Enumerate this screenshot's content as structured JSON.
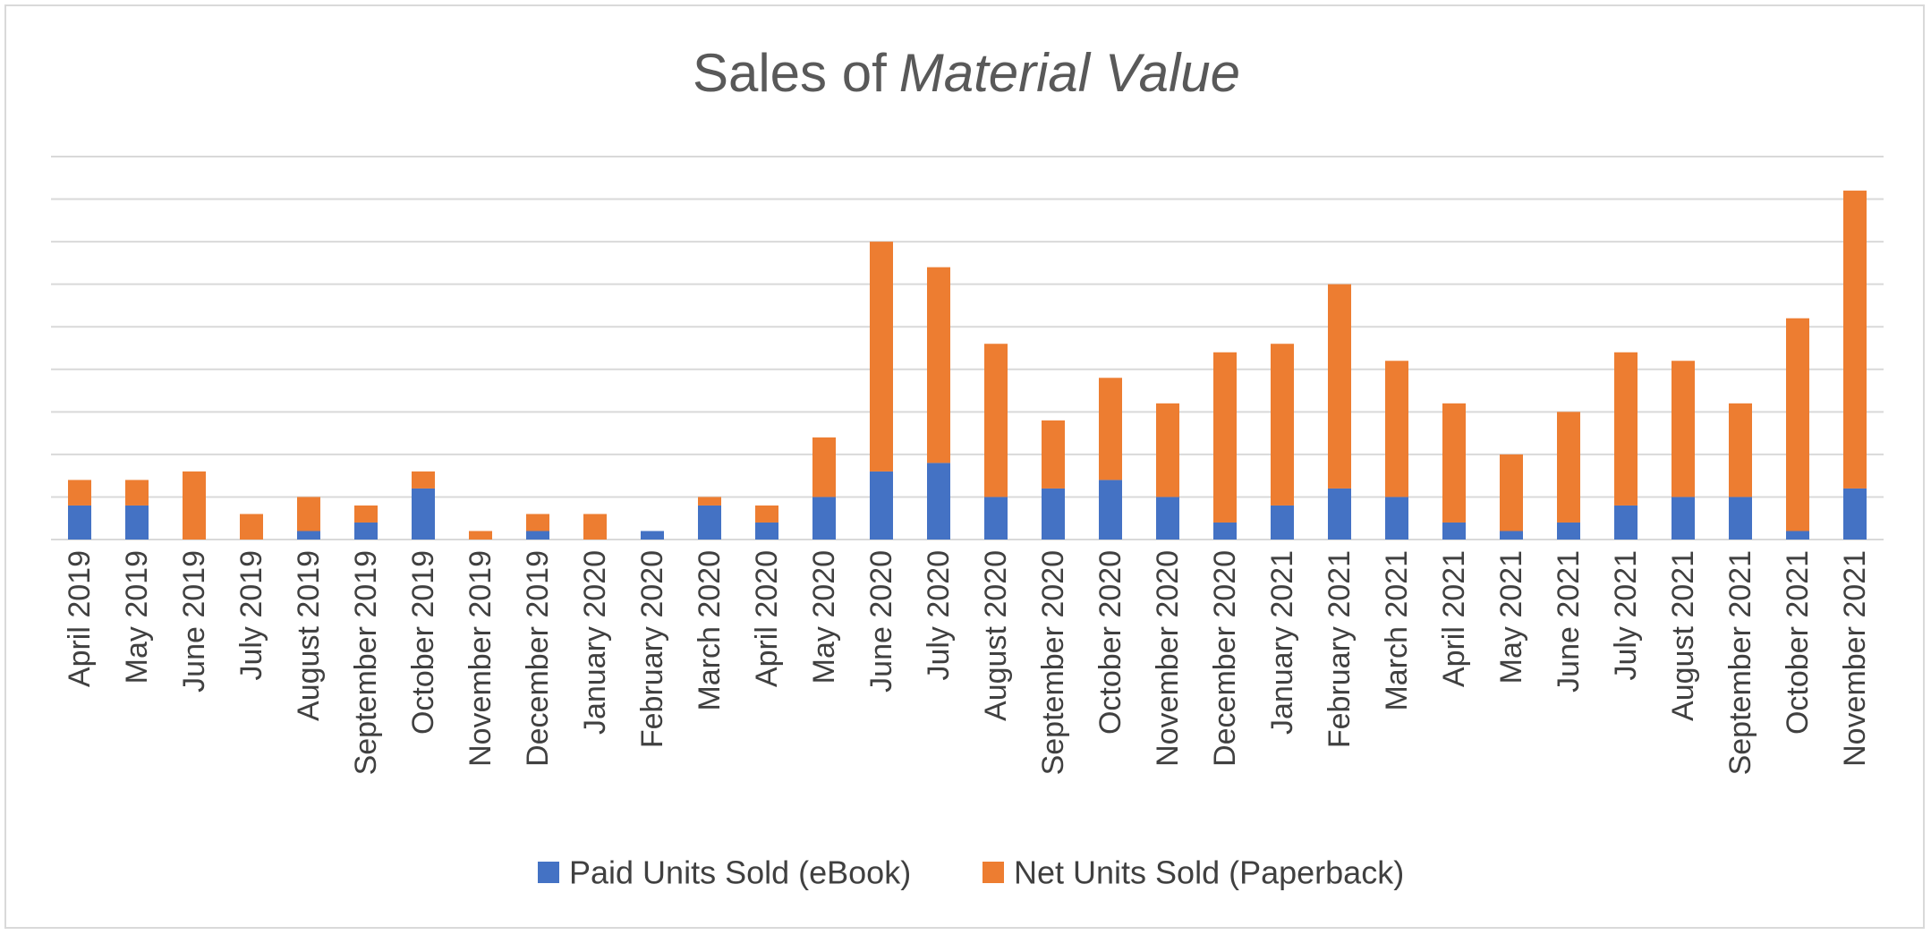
{
  "chart_data": {
    "type": "bar",
    "stacked": true,
    "title": "Sales of",
    "title_emphasis": "Material Value",
    "xlabel": "",
    "ylabel": "",
    "ylim": [
      0,
      45
    ],
    "y_gridline_step": 5,
    "y_tick_labels_shown": false,
    "grid": true,
    "legend_position": "bottom",
    "categories": [
      "April 2019",
      "May 2019",
      "June 2019",
      "July 2019",
      "August 2019",
      "September 2019",
      "October 2019",
      "November 2019",
      "December 2019",
      "January 2020",
      "February 2020",
      "March 2020",
      "April 2020",
      "May 2020",
      "June 2020",
      "July 2020",
      "August 2020",
      "September 2020",
      "October 2020",
      "November 2020",
      "December 2020",
      "January 2021",
      "February 2021",
      "March 2021",
      "April 2021",
      "May 2021",
      "June 2021",
      "July 2021",
      "August 2021",
      "September 2021",
      "October 2021",
      "November 2021"
    ],
    "series": [
      {
        "name": "Paid Units Sold (eBook)",
        "color": "#4472c4",
        "values": [
          4,
          4,
          0,
          0,
          1,
          2,
          6,
          0,
          1,
          0,
          1,
          4,
          2,
          5,
          8,
          9,
          5,
          6,
          7,
          5,
          2,
          4,
          6,
          5,
          2,
          1,
          2,
          4,
          5,
          5,
          1,
          6
        ]
      },
      {
        "name": "Net Units Sold (Paperback)",
        "color": "#ed7d31",
        "values": [
          3,
          3,
          8,
          3,
          4,
          2,
          2,
          1,
          2,
          3,
          0,
          1,
          2,
          7,
          27,
          23,
          18,
          8,
          12,
          11,
          20,
          19,
          24,
          16,
          14,
          9,
          13,
          18,
          16,
          11,
          25,
          35
        ]
      }
    ]
  }
}
